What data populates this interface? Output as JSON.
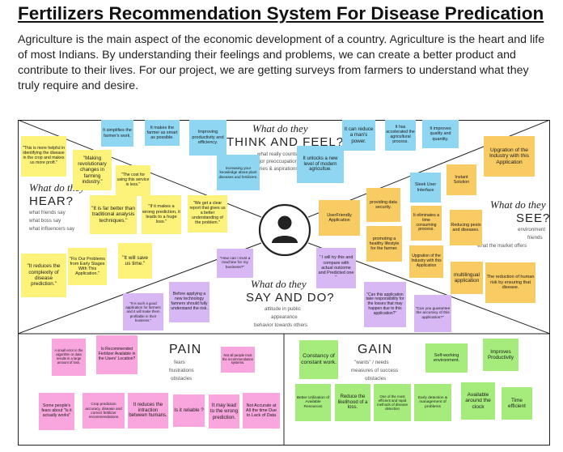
{
  "page": {
    "title": "Fertilizers Recommendation System For Disease Predication",
    "intro": "Agriculture is the main aspect of the economic development of a country. Agriculture is the heart and life of most Indians. By understanding their feelings and problems, we can create a better product and contribute to their lives. For our project, we are getting surveys from farmers to understand what they truly require and desire."
  },
  "colors": {
    "yellow": "#fdf27a",
    "blue": "#8fd6f2",
    "orange": "#f8cb63",
    "purple": "#d7b8f5",
    "pink": "#f8a6dd",
    "green": "#a6ec7d"
  },
  "center": {
    "icon": "person-icon"
  },
  "think": {
    "script": "What do they",
    "bold": "THINK AND FEEL?",
    "sub1": "what really counts",
    "sub2": "major preoccupations",
    "sub3": "worries & aspirations",
    "notes": [
      "It simplifies the farmer's work.",
      "It makes the farmer as smart as possible.",
      "Improving productivity and efficiency.",
      "Increasing your knowledge about plant diseases and fertilizers.",
      "It can reduce a man's power.",
      "It has accelerated the agricultural process.",
      "It improves quality and quantity.",
      "It unlocks a new level of modern agricultue."
    ]
  },
  "hear": {
    "script": "What do they",
    "bold": "HEAR?",
    "sub1": "what friends say",
    "sub2": "what boss say",
    "sub3": "what influencers say",
    "notes": [
      "\"This is more helpful in identifying the disease in the crop and makes us more proft.\"",
      "\"Making revolutionary changes in farming industry.\"",
      "\"The cost for using this service is less.\"",
      "\"It is far better than traditional analysis techniques.\"",
      "\"If it makes a wrong prediction, it leads to a huge loss.\"",
      "\"We get a clear report that gives us a better understanding of the problem.\"",
      "\"It reduces the complexity of disease prediction.\"",
      "\"Fix Our Problems from Early Stages With This Application.\"",
      "\"It will save us time.\""
    ]
  },
  "see": {
    "script": "What do they",
    "bold": "SEE?",
    "sub1": "environment",
    "sub2": "friends",
    "sub3": "what the market offers",
    "notes": [
      "providing data security.",
      "Sleek User Interface",
      "Instant Solution",
      "Upgration of the Industry with this Application",
      "UserFriendly Application",
      "It eliminates a time consuming process.",
      "Reducing pests and diseases.",
      "promoting a healthy lifestyle for the farmer.",
      "Upgration of the Industry with this Application",
      "multilingual application",
      "The reduction of human risk by ensuring that disease."
    ]
  },
  "say": {
    "script": "What do they",
    "bold": "SAY AND DO?",
    "sub1": "attitude in public",
    "sub2": "appearance",
    "sub3": "behavior towards others",
    "notes": [
      "\"How can I trust a machine for my business?\"",
      "\" I will try this and compare with actual outcome and Predicted one \"",
      "Before applying a new technology farmers should fully understand the risk.",
      "\"It is such a good application for farmers and it will make them profitable in their business.\"",
      "\"Can this application take responsibility for the losses that may happen due to this application?\"",
      "\"Can you guarantee the accuracy of this application?\""
    ]
  },
  "pain": {
    "bold": "PAIN",
    "sub1": "fears",
    "sub2": "frustrations",
    "sub3": "obstacles",
    "notes": [
      "A small error in the algorithm or data results in a large amount of loss.",
      "Is Recommended Fertilizer Available in the Users' Location?",
      "Not all people trust the recommendation systems.",
      "Some people's fears about \"Is it actually works\"",
      "Crop prediction accuracy, disease and correct fertilizer recommendations",
      "It reduces the intraction between humans.",
      "Is it reliable ?",
      "It may lead to the wrong prediction.",
      "Not Accurate at All the time Due to Lack of Data"
    ]
  },
  "gain": {
    "bold": "GAIN",
    "sub1": "\"wants\" / needs",
    "sub2": "measures of success",
    "sub3": "obstacles",
    "notes": [
      "Constancy of constant work.",
      "Self-working environment.",
      "Improves Productivity",
      "Better Utilization of Available Resources",
      "Reduce the likelihood of a loss.",
      "One of the most efficient and rapid methods of disease detection",
      "Early detection & management of problems",
      "Available around the clock",
      "Time efficient"
    ]
  }
}
